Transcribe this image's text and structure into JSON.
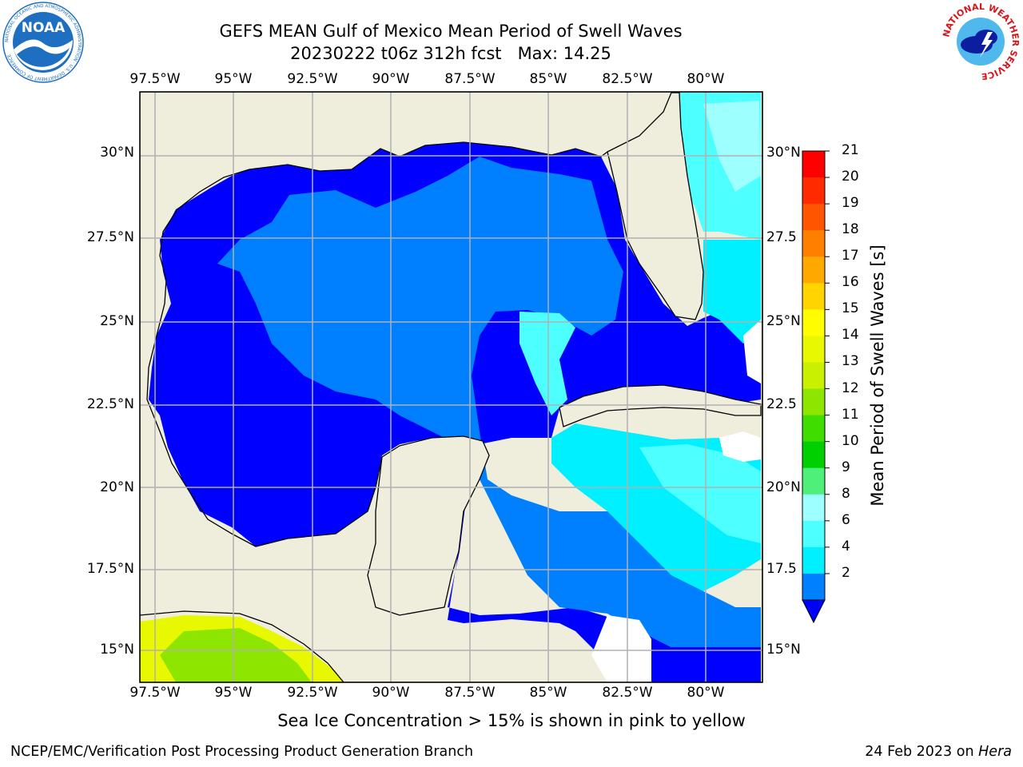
{
  "title": {
    "line1": "GEFS MEAN Gulf of Mexico Mean Period of Swell Waves",
    "line2": "20230222 t06z 312h fcst   Max: 14.25"
  },
  "logos": {
    "left": {
      "icon": "noaa-logo",
      "text": "NOAA",
      "ring_text": "NATIONAL OCEANIC AND ATMOSPHERIC ADMINISTRATION · U.S. DEPARTMENT OF COMMERCE",
      "color": "#1e6fc2"
    },
    "right": {
      "icon": "nws-logo",
      "ring_text": "NATIONAL WEATHER SERVICE",
      "color": "#d7161b"
    }
  },
  "map": {
    "lon_ticks": [
      "97.5°W",
      "95°W",
      "92.5°W",
      "90°W",
      "87.5°W",
      "85°W",
      "82.5°W",
      "80°W"
    ],
    "lat_ticks_left": [
      "30°N",
      "27.5°N",
      "25°N",
      "22.5°N",
      "20°N",
      "17.5°N",
      "15°N"
    ],
    "lat_ticks_right": [
      "30°N",
      "27.5",
      "25°N",
      "22.5",
      "20°N",
      "17.5",
      "15°N"
    ],
    "land_color": "#efeddc",
    "grid_color": "#b0b0b0",
    "grid": true
  },
  "colorbar": {
    "title": "Mean Period of Swell Waves [s]",
    "labels": [
      "21",
      "20",
      "19",
      "18",
      "17",
      "16",
      "15",
      "14",
      "13",
      "12",
      "11",
      "10",
      "9",
      "8",
      "6",
      "4",
      "2"
    ],
    "colors": [
      "#fe0000",
      "#ff2a00",
      "#ff5500",
      "#ff7f00",
      "#ffa800",
      "#ffd400",
      "#fffd00",
      "#e8f800",
      "#c8f000",
      "#8ee600",
      "#40dd00",
      "#00d000",
      "#4ef07a",
      "#9effff",
      "#4effff",
      "#00f0ff",
      "#0080ff"
    ],
    "extend_color": "#0000ff"
  },
  "note": "Sea Ice Concentration > 15% is shown in pink to yellow",
  "footer": {
    "left": "NCEP/EMC/Verification Post Processing Product Generation Branch",
    "right_date": "24 Feb 2023 on",
    "right_machine": "Hera"
  }
}
